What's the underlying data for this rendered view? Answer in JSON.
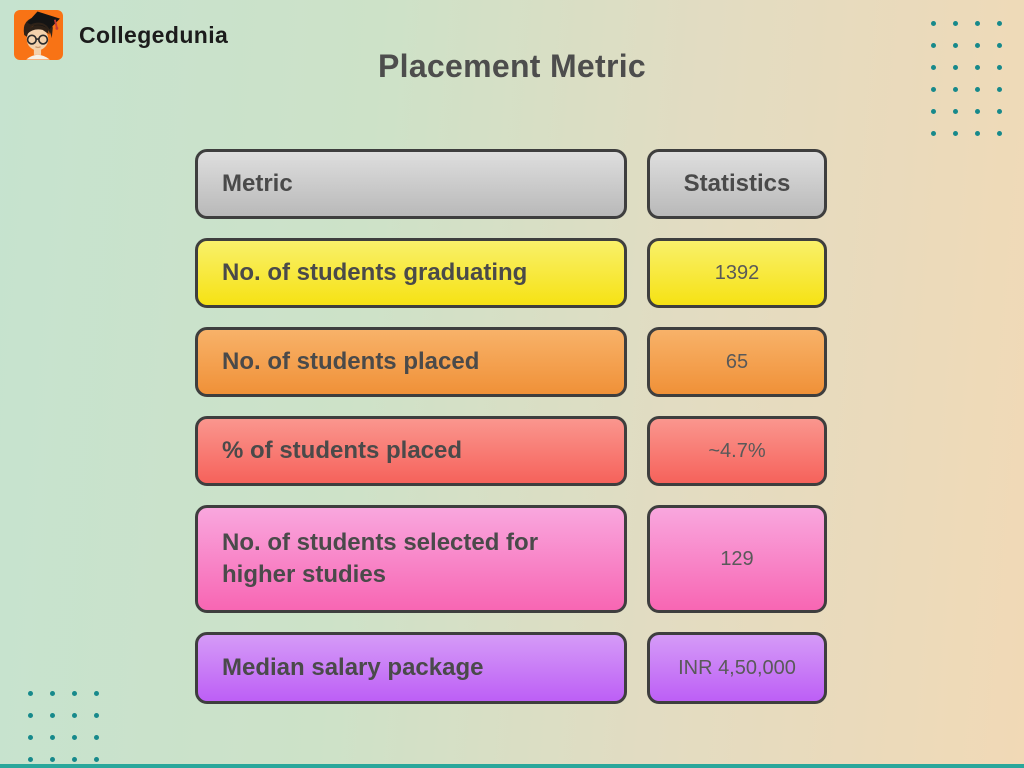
{
  "brand": {
    "name": "Collegedunia"
  },
  "title": "Placement Metric",
  "table": {
    "columns": {
      "metric": "Metric",
      "statistics": "Statistics"
    },
    "header_grad": {
      "top": "#dedede",
      "bottom": "#b9b9b9"
    },
    "rows": [
      {
        "metric": "No. of students graduating",
        "value": "1392",
        "grad": {
          "top": "#f9f06a",
          "bottom": "#f6e214"
        }
      },
      {
        "metric": "No. of students placed",
        "value": "65",
        "grad": {
          "top": "#f8b269",
          "bottom": "#f09138"
        }
      },
      {
        "metric": "% of students placed",
        "value": "~4.7%",
        "grad": {
          "top": "#fa968e",
          "bottom": "#f6625b"
        }
      },
      {
        "metric": "No. of students selected for higher studies",
        "value": "129",
        "grad": {
          "top": "#f9a7de",
          "bottom": "#f866b3"
        }
      },
      {
        "metric": "Median salary package",
        "value": "INR 4,50,000",
        "grad": {
          "top": "#d59bf7",
          "bottom": "#bd5ff6"
        }
      }
    ]
  },
  "chart_data": {
    "type": "table",
    "title": "Placement Metric",
    "columns": [
      "Metric",
      "Statistics"
    ],
    "rows": [
      [
        "No. of students graduating",
        "1392"
      ],
      [
        "No. of students placed",
        "65"
      ],
      [
        "% of students placed",
        "~4.7%"
      ],
      [
        "No. of students selected for higher studies",
        "129"
      ],
      [
        "Median salary package",
        "INR 4,50,000"
      ]
    ]
  },
  "decor": {
    "dot_color": "#17898b",
    "accent_bar_color": "#2aa79b",
    "logo_bg": "#f87315",
    "dots_top_right": {
      "rows": 6,
      "cols": 4
    },
    "dots_bottom_left": {
      "rows": 4,
      "cols": 4
    }
  }
}
